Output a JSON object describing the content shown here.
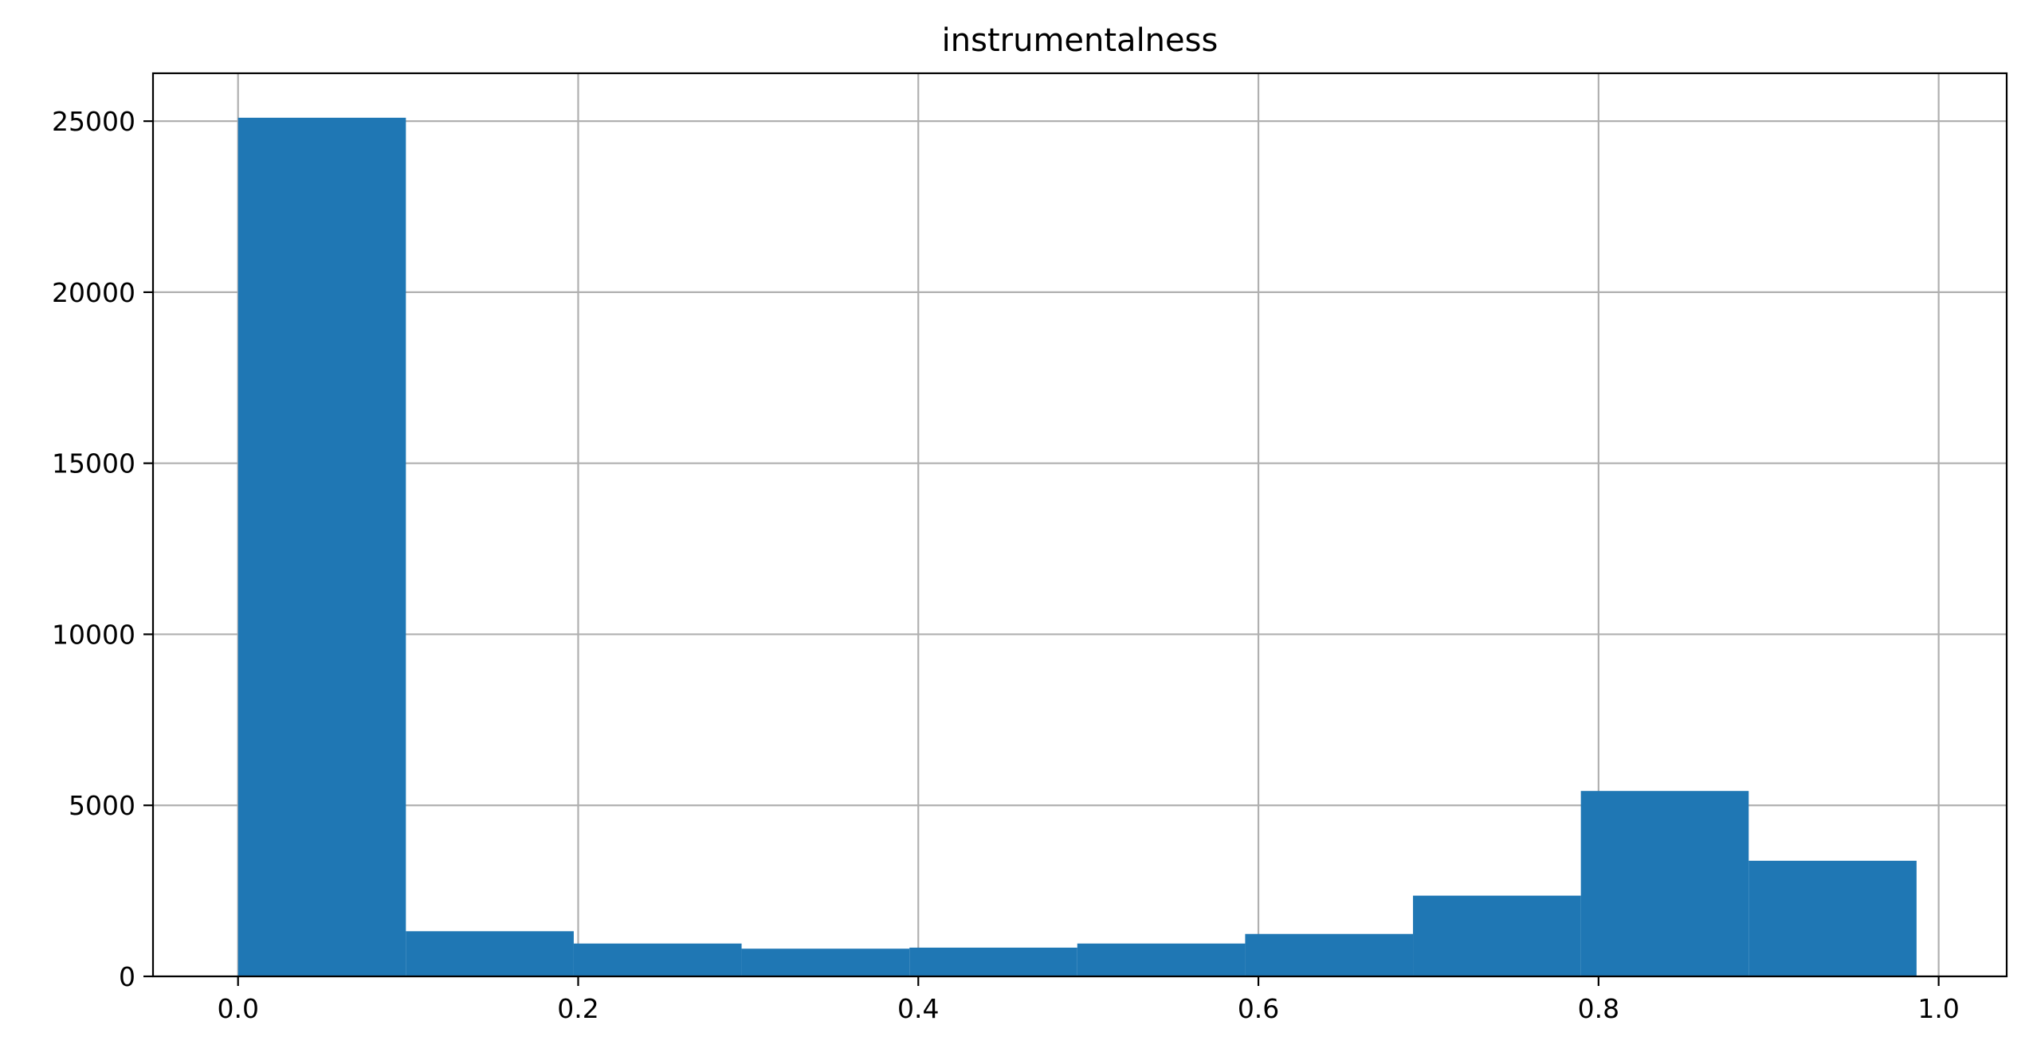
{
  "chart_data": {
    "type": "bar",
    "title": "instrumentalness",
    "xlabel": "",
    "ylabel": "",
    "xlim": [
      -0.05,
      1.04
    ],
    "ylim": [
      0,
      26400
    ],
    "grid": true,
    "bar_color": "#1f77b4",
    "bin_edges": [
      0.0,
      0.0987,
      0.1974,
      0.2961,
      0.3948,
      0.4935,
      0.5922,
      0.6909,
      0.7896,
      0.8883,
      0.987
    ],
    "counts": [
      25100,
      1320,
      960,
      810,
      840,
      960,
      1240,
      2360,
      5420,
      3380
    ],
    "x_ticks": [
      0.0,
      0.2,
      0.4,
      0.6,
      0.8,
      1.0
    ],
    "x_tick_labels": [
      "0.0",
      "0.2",
      "0.4",
      "0.6",
      "0.8",
      "1.0"
    ],
    "y_ticks": [
      0,
      5000,
      10000,
      15000,
      20000,
      25000
    ],
    "y_tick_labels": [
      "0",
      "5000",
      "10000",
      "15000",
      "20000",
      "25000"
    ]
  }
}
